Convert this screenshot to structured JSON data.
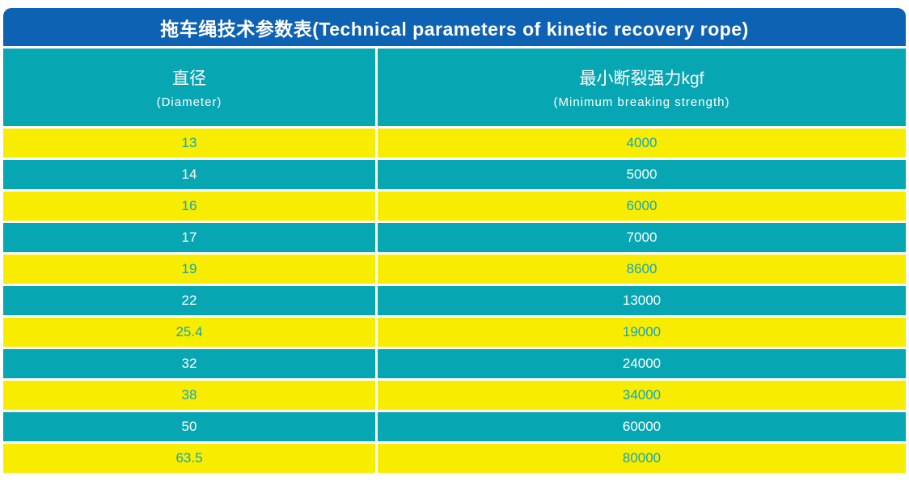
{
  "title": "拖车绳技术参数表(Technical parameters of kinetic recovery rope)",
  "header": {
    "col1_zh": "直径",
    "col1_en": "(Diameter)",
    "col2_zh": "最小断裂强力kgf",
    "col2_en": "(Minimum breaking strength)"
  },
  "rows": [
    {
      "diameter": "13",
      "strength": "4000"
    },
    {
      "diameter": "14",
      "strength": "5000"
    },
    {
      "diameter": "16",
      "strength": "6000"
    },
    {
      "diameter": "17",
      "strength": "7000"
    },
    {
      "diameter": "19",
      "strength": "8600"
    },
    {
      "diameter": "22",
      "strength": "13000"
    },
    {
      "diameter": "25.4",
      "strength": "19000"
    },
    {
      "diameter": "32",
      "strength": "24000"
    },
    {
      "diameter": "38",
      "strength": "34000"
    },
    {
      "diameter": "50",
      "strength": "60000"
    },
    {
      "diameter": "63.5",
      "strength": "80000"
    }
  ],
  "colors": {
    "title_bar_blue": "#0e62b3",
    "teal": "#07a6b3",
    "yellow": "#f8ec00",
    "text_on_teal": "#ffffff",
    "text_on_yellow": "#0fa8bc",
    "page_background": "#ffffff"
  },
  "chart_data": {
    "type": "table",
    "title": "拖车绳技术参数表(Technical parameters of kinetic recovery rope)",
    "columns": [
      "直径 (Diameter)",
      "最小断裂强力kgf (Minimum breaking strength)"
    ],
    "rows": [
      [
        13,
        4000
      ],
      [
        14,
        5000
      ],
      [
        16,
        6000
      ],
      [
        17,
        7000
      ],
      [
        19,
        8600
      ],
      [
        22,
        13000
      ],
      [
        25.4,
        19000
      ],
      [
        32,
        24000
      ],
      [
        38,
        34000
      ],
      [
        50,
        60000
      ],
      [
        63.5,
        80000
      ]
    ]
  }
}
